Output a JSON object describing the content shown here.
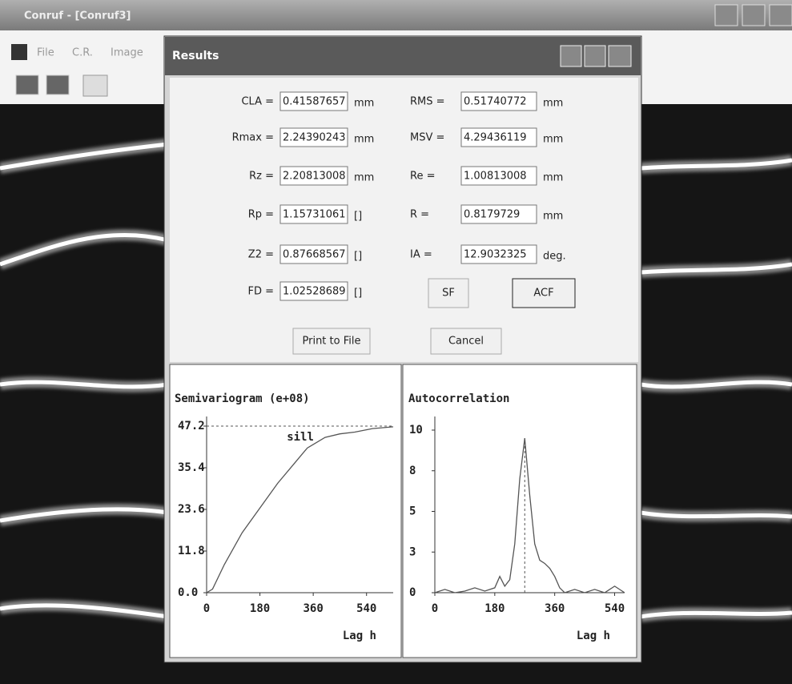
{
  "window": {
    "title": "Conruf - [Conruf3]",
    "menu": [
      "File",
      "C.R.",
      "Image"
    ]
  },
  "dialog": {
    "title": "Results",
    "left_fields": [
      {
        "label": "CLA =",
        "value": "0.41587657",
        "unit": "mm"
      },
      {
        "label": "Rmax =",
        "value": "2.24390243",
        "unit": "mm"
      },
      {
        "label": "Rz =",
        "value": "2.20813008",
        "unit": "mm"
      },
      {
        "label": "Rp =",
        "value": "1.15731061",
        "unit": "[]"
      },
      {
        "label": "Z2 =",
        "value": "0.87668567",
        "unit": "[]"
      },
      {
        "label": "FD =",
        "value": "1.02528689",
        "unit": "[]"
      }
    ],
    "right_fields": [
      {
        "label": "RMS =",
        "value": "0.51740772",
        "unit": "mm"
      },
      {
        "label": "MSV =",
        "value": "4.29436119",
        "unit": "mm"
      },
      {
        "label": "Re =",
        "value": "1.00813008",
        "unit": "mm"
      },
      {
        "label": "R =",
        "value": "0.8179729",
        "unit": "mm"
      },
      {
        "label": "IA =",
        "value": "12.9032325",
        "unit": "deg."
      }
    ],
    "buttons": [
      "SF",
      "ACF",
      "Print to File",
      "Cancel"
    ]
  },
  "chart_data": [
    {
      "type": "line",
      "title": "Semivariogram (e+08)",
      "x_label": "Lag h",
      "color": "#555555",
      "x": [
        0,
        20,
        60,
        120,
        180,
        240,
        300,
        340,
        360,
        400,
        450,
        500,
        560,
        630
      ],
      "values": [
        0,
        1,
        8,
        17,
        24,
        31,
        37,
        41,
        42,
        44,
        45,
        45.5,
        46.5,
        47
      ],
      "xlim": [
        0,
        630
      ],
      "ylim": [
        0,
        47.2
      ],
      "xticks": [
        0,
        180,
        360,
        540
      ],
      "yticks": [
        {
          "value": 0,
          "label": "0.0"
        },
        11.8,
        23.6,
        35.4,
        47.2
      ],
      "reference_line": {
        "value": 47.2,
        "label": "sill"
      }
    },
    {
      "type": "line",
      "title": "Autocorrelation",
      "x_label": "Lag h",
      "color": "#555555",
      "x": [
        0,
        30,
        60,
        90,
        120,
        150,
        180,
        195,
        210,
        225,
        240,
        255,
        270,
        285,
        300,
        315,
        330,
        345,
        360,
        375,
        390,
        420,
        450,
        480,
        510,
        540,
        570
      ],
      "values": [
        0,
        0.2,
        0,
        0.1,
        0.3,
        0.1,
        0.3,
        1,
        0.4,
        0.8,
        3,
        7,
        9.5,
        6,
        3,
        2,
        1.8,
        1.5,
        1,
        0.3,
        0,
        0.2,
        0,
        0.2,
        0,
        0.4,
        0
      ],
      "xlim": [
        0,
        570
      ],
      "ylim": [
        0,
        10
      ],
      "xticks": [
        0,
        180,
        360,
        540
      ],
      "yticks": [
        0,
        {
          "value": 2.5,
          "label": "3"
        },
        5,
        {
          "value": 7.5,
          "label": "8"
        },
        10
      ],
      "peak_line": {
        "x": 270
      }
    }
  ]
}
